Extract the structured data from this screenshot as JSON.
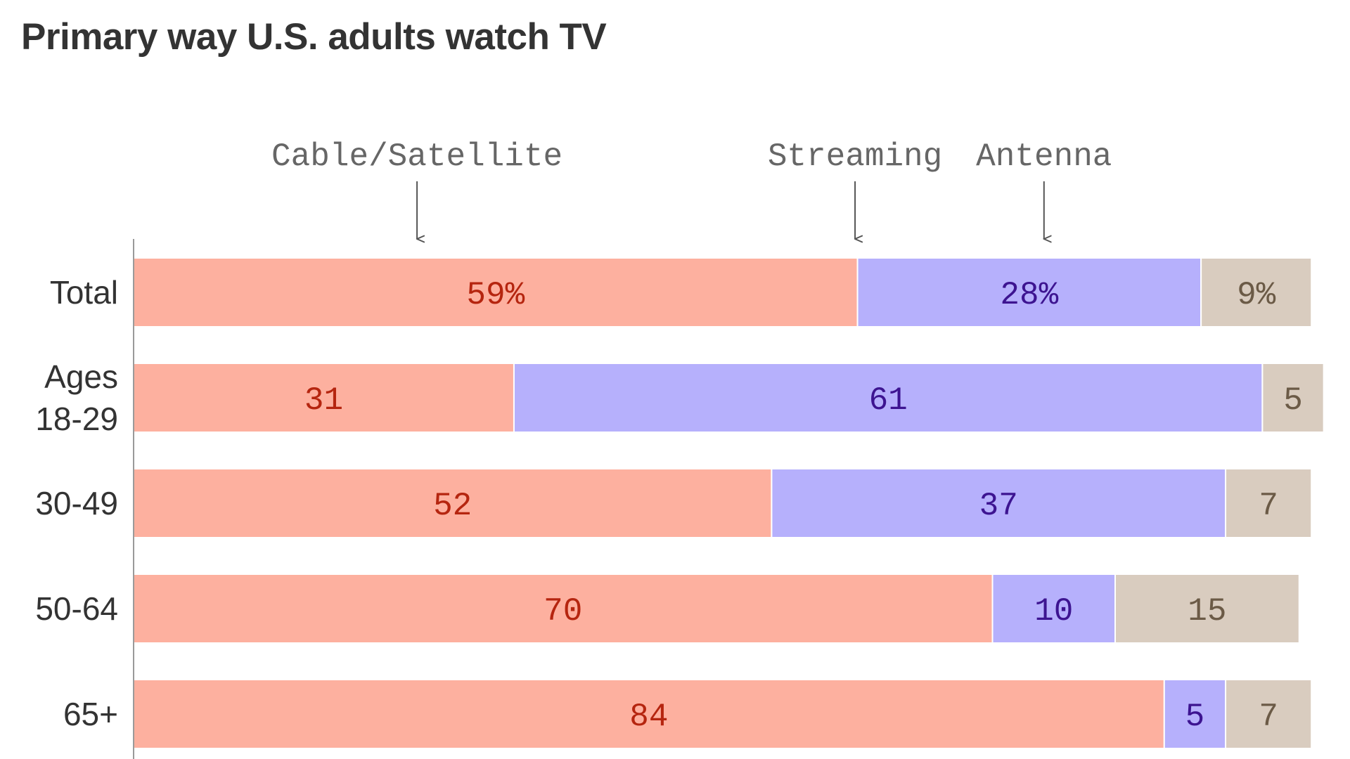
{
  "chart_data": {
    "type": "bar",
    "orientation": "horizontal",
    "stacked": true,
    "title": "Primary way U.S. adults watch TV",
    "xlabel": "",
    "ylabel": "",
    "legend_placement": "top",
    "grid": false,
    "xlim": [
      0,
      100
    ],
    "categories": [
      [
        "Total"
      ],
      [
        "Ages",
        "18-29"
      ],
      [
        "30-49"
      ],
      [
        "50-64"
      ],
      [
        "65+"
      ]
    ],
    "series": [
      {
        "name": "Cable/Satellite",
        "color": "#fdb09f",
        "label_color": "#b5250f",
        "values": [
          59,
          31,
          52,
          70,
          84
        ],
        "labels": [
          "59%",
          "31",
          "52",
          "70",
          "84"
        ]
      },
      {
        "name": "Streaming",
        "color": "#b6b0fc",
        "label_color": "#3d1491",
        "values": [
          28,
          61,
          37,
          10,
          5
        ],
        "labels": [
          "28%",
          "61",
          "37",
          "10",
          "5"
        ]
      },
      {
        "name": "Antenna",
        "color": "#d9ccbf",
        "label_color": "#6b5a46",
        "values": [
          9,
          5,
          7,
          15,
          7
        ],
        "labels": [
          "9%",
          "5",
          "7",
          "15",
          "7"
        ]
      }
    ]
  }
}
